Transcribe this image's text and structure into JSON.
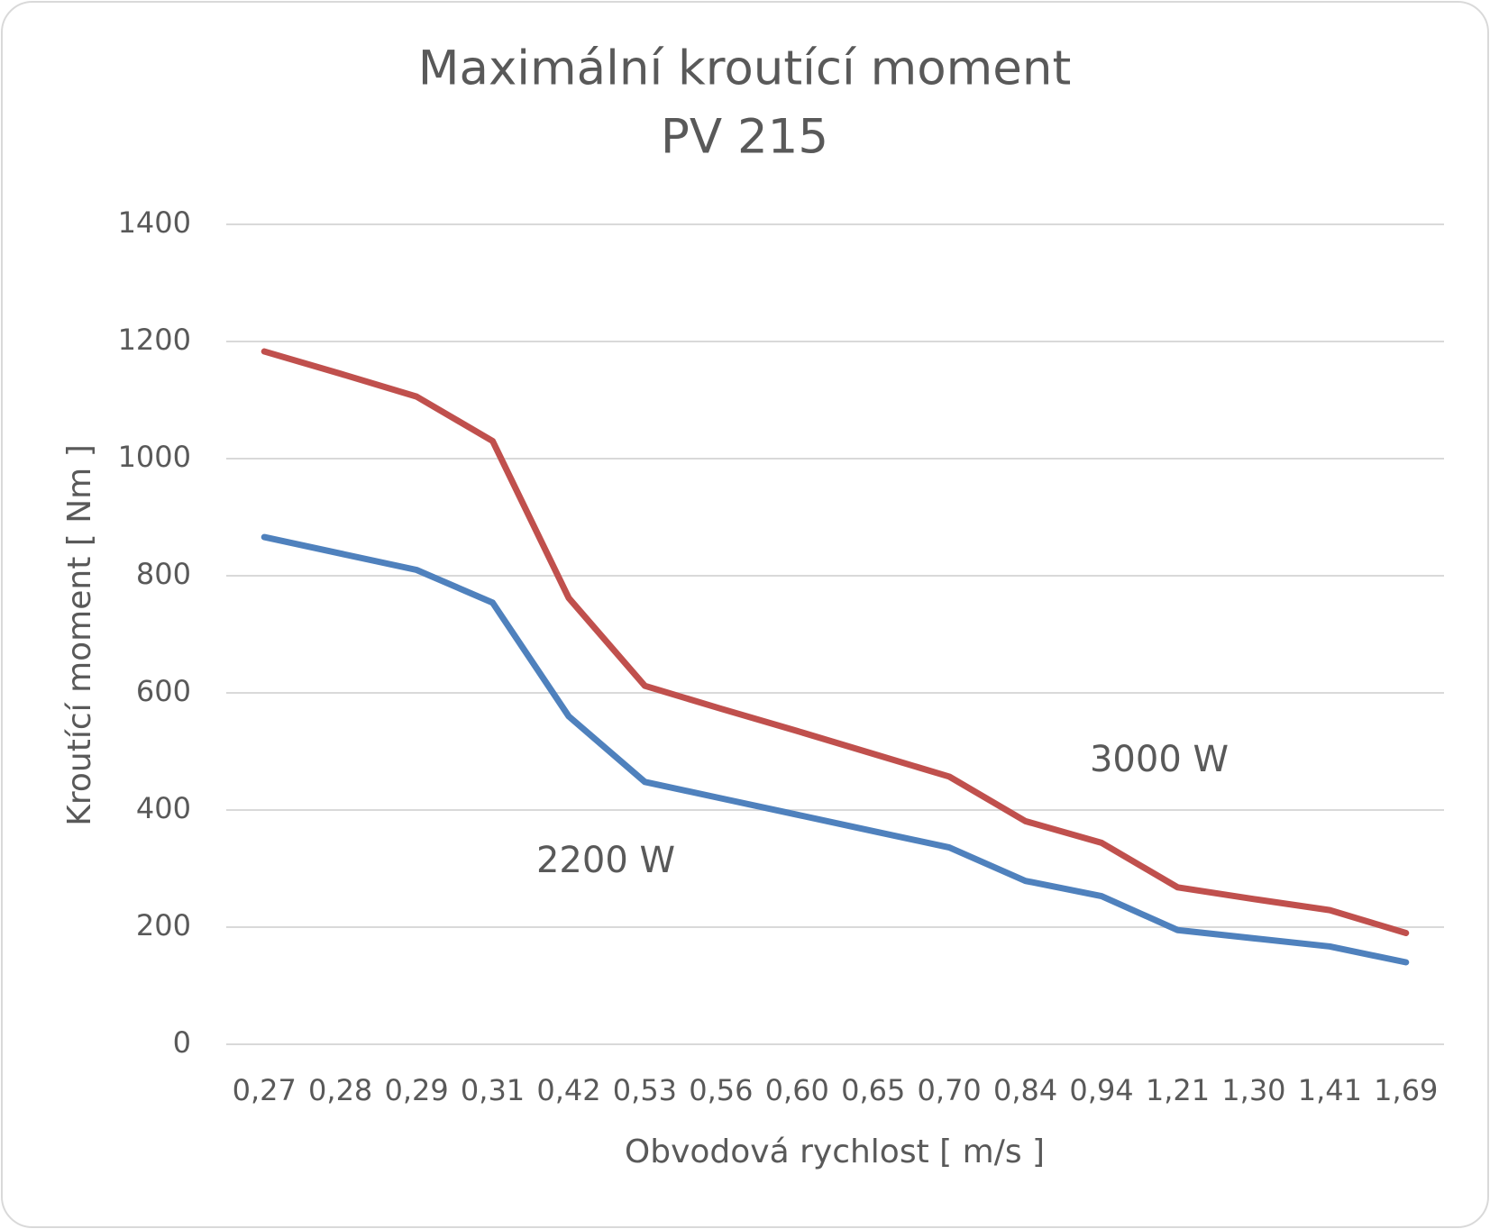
{
  "chart_data": {
    "type": "line",
    "title": "Maximální kroutící moment",
    "subtitle": "PV 215",
    "x_label": "Obvodová rychlost  [ m/s ]",
    "y_label": "Kroutící moment  [ Nm ]",
    "categories": [
      "0,27",
      "0,28",
      "0,29",
      "0,31",
      "0,42",
      "0,53",
      "0,56",
      "0,60",
      "0,65",
      "0,70",
      "0,84",
      "0,94",
      "1,21",
      "1,30",
      "1,41",
      "1,69"
    ],
    "series": [
      {
        "name": "3000 W",
        "color": "#c0504d",
        "values": [
          1183,
          1145,
          1106,
          1030,
          762,
          612,
          573,
          535,
          496,
          457,
          381,
          344,
          268,
          248,
          229,
          190
        ]
      },
      {
        "name": "2200 W",
        "color": "#4f81bd",
        "values": [
          866,
          838,
          810,
          754,
          560,
          448,
          420,
          392,
          364,
          336,
          279,
          253,
          195,
          181,
          167,
          140
        ]
      }
    ],
    "ylim": [
      0,
      1400
    ],
    "yticks": [
      0,
      200,
      400,
      600,
      800,
      1000,
      1200,
      1400
    ],
    "grid": true
  }
}
